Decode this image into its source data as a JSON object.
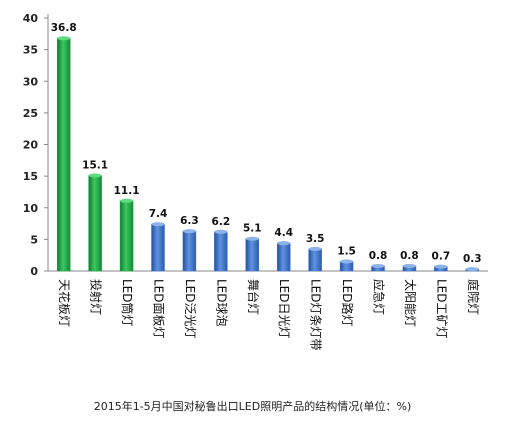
{
  "chart_data": {
    "type": "bar",
    "title": "2015年1-5月中国对秘鲁出口LED照明产品的结构情况(单位：%)",
    "xlabel": "",
    "ylabel": "",
    "ylim": [
      0,
      40
    ],
    "yticks": [
      0,
      5,
      10,
      15,
      20,
      25,
      30,
      35,
      40
    ],
    "grid": false,
    "legend": "none",
    "categories": [
      "天花板灯",
      "投射灯",
      "LED筒灯",
      "LED面板灯",
      "LED泛光灯",
      "LED球泡",
      "舞台灯",
      "LED日光灯",
      "LED灯条灯带",
      "LED路灯",
      "应急灯",
      "太阳能灯",
      "LED工矿灯",
      "庭院灯"
    ],
    "values": [
      36.8,
      15.1,
      11.1,
      7.4,
      6.3,
      6.2,
      5.1,
      4.4,
      3.5,
      1.5,
      0.8,
      0.8,
      0.7,
      0.3
    ],
    "value_labels": [
      "36.8",
      "15.1",
      "11.1",
      "7.4",
      "6.3",
      "6.2",
      "5.1",
      "4.4",
      "3.5",
      "1.5",
      "0.8",
      "0.8",
      "0.7",
      "0.3"
    ],
    "bar_colors": [
      "#1fa646",
      "#1fa646",
      "#1fa646",
      "#3f74c8",
      "#3f74c8",
      "#3f74c8",
      "#3f74c8",
      "#3f74c8",
      "#3f74c8",
      "#3f74c8",
      "#3f74c8",
      "#3f74c8",
      "#3f74c8",
      "#3f74c8"
    ]
  }
}
